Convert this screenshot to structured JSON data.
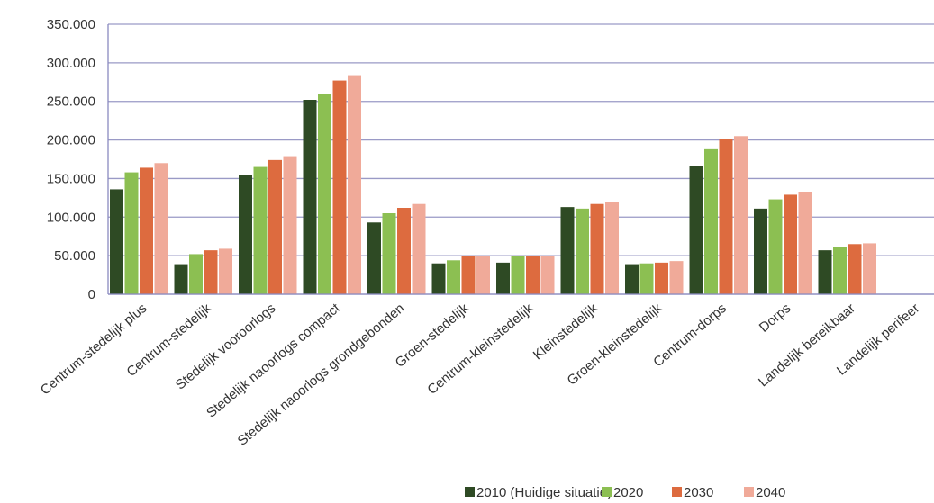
{
  "chart_data": {
    "type": "bar",
    "title": "",
    "xlabel": "",
    "ylabel": "",
    "ylim": [
      0,
      350000
    ],
    "yticks": [
      0,
      50000,
      100000,
      150000,
      200000,
      250000,
      300000,
      350000
    ],
    "ytick_labels": [
      "0",
      "50.000",
      "100.000",
      "150.000",
      "200.000",
      "250.000",
      "300.000",
      "350.000"
    ],
    "grid": true,
    "legend_position": "bottom-right",
    "categories": [
      "Centrum-stedelijk plus",
      "Centrum-stedelijk",
      "Stedelijk vooroorlogs",
      "Stedelijk naoorlogs compact",
      "Stedelijk naoorlogs grondgebonden",
      "Groen-stedelijk",
      "Centrum-kleinstedelijk",
      "Kleinstedelijk",
      "Groen-kleinstedelijk",
      "Centrum-dorps",
      "Dorps",
      "Landelijk bereikbaar",
      "Landelijk perifeer"
    ],
    "series": [
      {
        "name": "2010 (Huidige situatie)",
        "color": "#2e4a24",
        "values": [
          136000,
          39000,
          154000,
          252000,
          93000,
          40000,
          41000,
          113000,
          39000,
          166000,
          111000,
          57000,
          0
        ]
      },
      {
        "name": "2020",
        "color": "#8cbf52",
        "values": [
          158000,
          52000,
          165000,
          260000,
          105000,
          44000,
          49000,
          111000,
          40000,
          188000,
          123000,
          61000,
          0
        ]
      },
      {
        "name": "2030",
        "color": "#dd6b3f",
        "values": [
          164000,
          57000,
          174000,
          277000,
          112000,
          50000,
          49000,
          117000,
          41000,
          201000,
          129000,
          65000,
          0
        ]
      },
      {
        "name": "2040",
        "color": "#f0aa99",
        "values": [
          170000,
          59000,
          179000,
          284000,
          117000,
          50000,
          49000,
          119000,
          43000,
          205000,
          133000,
          66000,
          0
        ]
      }
    ]
  }
}
